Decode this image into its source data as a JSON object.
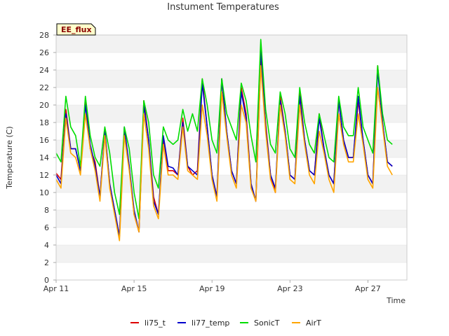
{
  "chart_data": {
    "type": "line",
    "title": "Instument Temperatures",
    "xlabel": "Time",
    "ylabel": "Temperature (C)",
    "badge": "EE_flux",
    "ylim": [
      0,
      28
    ],
    "yticks": [
      0,
      2,
      4,
      6,
      8,
      10,
      12,
      14,
      16,
      18,
      20,
      22,
      24,
      26,
      28
    ],
    "xlim": [
      "2024-04-11",
      "2024-04-29"
    ],
    "xticks": [
      {
        "date": "2024-04-11",
        "label": "Apr 11"
      },
      {
        "date": "2024-04-15",
        "label": "Apr 15"
      },
      {
        "date": "2024-04-19",
        "label": "Apr 19"
      },
      {
        "date": "2024-04-23",
        "label": "Apr 23"
      },
      {
        "date": "2024-04-27",
        "label": "Apr 27"
      }
    ],
    "grid": "horizontal bands",
    "legend_position": "bottom",
    "x": [
      "2024-04-11 00:00",
      "2024-04-11 06:00",
      "2024-04-11 12:00",
      "2024-04-11 18:00",
      "2024-04-12 00:00",
      "2024-04-12 06:00",
      "2024-04-12 12:00",
      "2024-04-12 18:00",
      "2024-04-13 00:00",
      "2024-04-13 06:00",
      "2024-04-13 12:00",
      "2024-04-13 18:00",
      "2024-04-14 00:00",
      "2024-04-14 06:00",
      "2024-04-14 12:00",
      "2024-04-14 18:00",
      "2024-04-15 00:00",
      "2024-04-15 06:00",
      "2024-04-15 12:00",
      "2024-04-15 18:00",
      "2024-04-16 00:00",
      "2024-04-16 06:00",
      "2024-04-16 12:00",
      "2024-04-16 18:00",
      "2024-04-17 00:00",
      "2024-04-17 06:00",
      "2024-04-17 12:00",
      "2024-04-17 18:00",
      "2024-04-18 00:00",
      "2024-04-18 06:00",
      "2024-04-18 12:00",
      "2024-04-18 18:00",
      "2024-04-19 00:00",
      "2024-04-19 06:00",
      "2024-04-19 12:00",
      "2024-04-19 18:00",
      "2024-04-20 00:00",
      "2024-04-20 06:00",
      "2024-04-20 12:00",
      "2024-04-20 18:00",
      "2024-04-21 00:00",
      "2024-04-21 06:00",
      "2024-04-21 12:00",
      "2024-04-21 18:00",
      "2024-04-22 00:00",
      "2024-04-22 06:00",
      "2024-04-22 12:00",
      "2024-04-22 18:00",
      "2024-04-23 00:00",
      "2024-04-23 06:00",
      "2024-04-23 12:00",
      "2024-04-23 18:00",
      "2024-04-24 00:00",
      "2024-04-24 06:00",
      "2024-04-24 12:00",
      "2024-04-24 18:00",
      "2024-04-25 00:00",
      "2024-04-25 06:00",
      "2024-04-25 12:00",
      "2024-04-25 18:00",
      "2024-04-26 00:00",
      "2024-04-26 06:00",
      "2024-04-26 12:00",
      "2024-04-26 18:00",
      "2024-04-27 00:00",
      "2024-04-27 06:00",
      "2024-04-27 12:00",
      "2024-04-27 18:00",
      "2024-04-28 00:00",
      "2024-04-28 06:00"
    ],
    "series": [
      {
        "name": "li75_t",
        "color": "#dd0000",
        "values": [
          12.2,
          11.5,
          19.5,
          15.0,
          15.0,
          12.5,
          20.5,
          15.0,
          13.5,
          9.5,
          17.0,
          11.0,
          8.0,
          5.0,
          17.0,
          13.0,
          7.5,
          5.5,
          20.5,
          16.0,
          9.5,
          7.5,
          16.0,
          12.5,
          12.5,
          12.0,
          18.5,
          13.0,
          12.0,
          12.5,
          23.0,
          17.5,
          12.0,
          9.5,
          23.0,
          17.0,
          12.5,
          11.0,
          22.0,
          19.0,
          11.0,
          9.0,
          25.0,
          18.0,
          12.0,
          10.0,
          21.0,
          17.0,
          12.0,
          11.5,
          21.5,
          16.0,
          12.5,
          12.0,
          19.0,
          15.0,
          12.0,
          11.0,
          20.5,
          16.0,
          14.0,
          14.0,
          20.5,
          16.0,
          12.0,
          11.0,
          24.5,
          18.0,
          13.5,
          13.0
        ]
      },
      {
        "name": "li77_temp",
        "color": "#0000cc",
        "values": [
          12.0,
          11.0,
          19.0,
          15.0,
          15.0,
          12.5,
          20.0,
          15.5,
          13.0,
          9.5,
          17.0,
          11.0,
          8.0,
          5.0,
          17.5,
          13.0,
          8.0,
          5.5,
          20.0,
          16.0,
          9.0,
          7.5,
          16.5,
          13.0,
          12.8,
          12.0,
          18.0,
          13.0,
          12.5,
          12.0,
          22.5,
          17.5,
          12.0,
          9.5,
          23.0,
          17.0,
          12.5,
          11.0,
          21.5,
          18.5,
          11.0,
          9.0,
          26.5,
          17.5,
          12.0,
          10.5,
          20.5,
          17.0,
          12.0,
          11.5,
          21.0,
          16.0,
          12.5,
          12.0,
          18.5,
          15.0,
          12.0,
          11.0,
          20.5,
          16.0,
          14.0,
          14.0,
          21.0,
          16.0,
          12.0,
          11.0,
          24.0,
          18.0,
          13.5,
          13.0
        ]
      },
      {
        "name": "SonicT",
        "color": "#00dd00",
        "values": [
          14.5,
          13.5,
          21.0,
          17.5,
          16.5,
          13.0,
          21.0,
          16.5,
          14.0,
          13.0,
          17.5,
          14.5,
          10.0,
          7.5,
          17.5,
          15.0,
          10.0,
          7.0,
          20.5,
          18.0,
          12.0,
          10.5,
          17.5,
          16.0,
          15.5,
          16.0,
          19.5,
          17.0,
          19.0,
          17.0,
          23.0,
          20.0,
          16.0,
          14.5,
          23.0,
          19.0,
          17.5,
          16.0,
          22.5,
          20.5,
          16.5,
          13.5,
          27.5,
          19.5,
          15.5,
          14.5,
          21.5,
          19.0,
          15.0,
          14.0,
          22.0,
          18.0,
          15.5,
          14.5,
          19.0,
          16.5,
          14.0,
          13.5,
          21.0,
          17.5,
          16.5,
          16.5,
          22.0,
          17.5,
          16.0,
          14.5,
          24.5,
          19.0,
          16.0,
          15.5
        ]
      },
      {
        "name": "AirT",
        "color": "#ffa500",
        "values": [
          11.5,
          10.5,
          18.5,
          14.5,
          14.0,
          12.0,
          19.0,
          15.0,
          12.5,
          9.0,
          16.5,
          10.5,
          7.5,
          4.5,
          16.5,
          12.5,
          7.5,
          5.5,
          19.0,
          15.0,
          8.5,
          7.0,
          15.5,
          12.0,
          12.0,
          11.5,
          17.5,
          12.5,
          12.0,
          11.5,
          20.0,
          16.5,
          11.5,
          9.0,
          21.5,
          16.5,
          12.0,
          10.5,
          20.0,
          18.0,
          10.5,
          9.0,
          24.5,
          17.0,
          11.5,
          10.0,
          20.0,
          16.5,
          11.5,
          11.0,
          20.0,
          15.5,
          12.0,
          11.0,
          17.0,
          14.5,
          11.5,
          10.0,
          19.0,
          15.5,
          13.5,
          13.5,
          19.0,
          15.5,
          11.5,
          10.5,
          22.0,
          17.5,
          13.0,
          12.0
        ]
      }
    ]
  }
}
